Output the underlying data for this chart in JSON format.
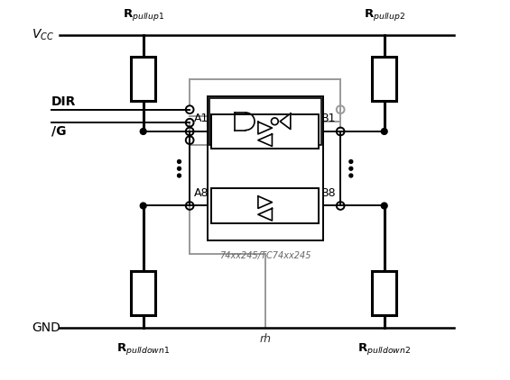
{
  "bg_color": "#ffffff",
  "line_color": "#000000",
  "gray_color": "#999999",
  "fig_width": 5.65,
  "fig_height": 4.22,
  "vcc_label": "V$_{CC}$",
  "gnd_label": "GND",
  "dir_label": "DIR",
  "g_label": "/G",
  "a1_label": "A1",
  "a8_label": "A8",
  "b1_label": "B1",
  "b8_label": "B8",
  "rpullup1_label": "R$_{pullup1}$",
  "rpullup2_label": "R$_{pullup2}$",
  "rpulldown1_label": "R$_{pulldown1}$",
  "rpulldown2_label": "R$_{pulldown2}$",
  "ic_label": "74xx245/TC74xx245",
  "gnd_sym_label": "rh"
}
